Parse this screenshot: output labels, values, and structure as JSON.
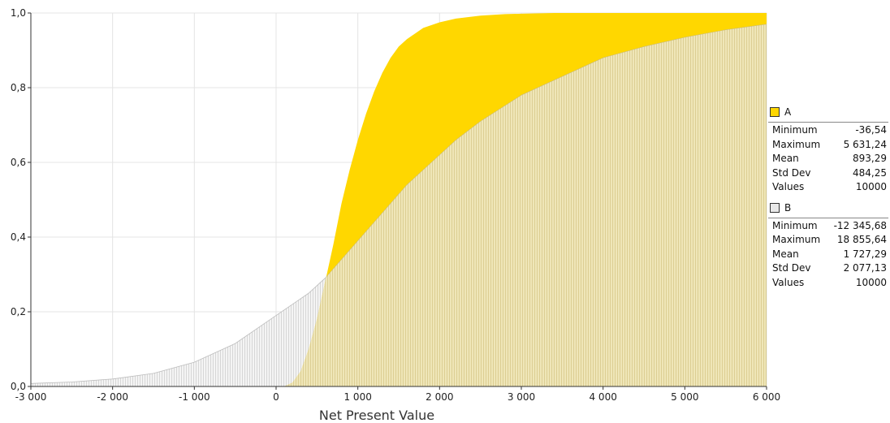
{
  "chart_data": {
    "type": "area",
    "title": "",
    "xlabel": "Net Present Value",
    "ylabel": "",
    "xlim": [
      -3000,
      6000
    ],
    "ylim": [
      0,
      1
    ],
    "x_ticks": [
      "-3 000",
      "-2 000",
      "-1 000",
      "0",
      "1 000",
      "2 000",
      "3 000",
      "4 000",
      "5 000",
      "6 000"
    ],
    "x_tick_values": [
      -3000,
      -2000,
      -1000,
      0,
      1000,
      2000,
      3000,
      4000,
      5000,
      6000
    ],
    "y_ticks": [
      "0,0",
      "0,2",
      "0,4",
      "0,6",
      "0,8",
      "1,0"
    ],
    "y_tick_values": [
      0,
      0.2,
      0.4,
      0.6,
      0.8,
      1.0
    ],
    "grid": true,
    "series": [
      {
        "name": "A",
        "color": "#FFD700",
        "x": [
          -3000,
          100,
          200,
          300,
          400,
          500,
          600,
          700,
          800,
          900,
          1000,
          1100,
          1200,
          1300,
          1400,
          1500,
          1600,
          1800,
          2000,
          2200,
          2500,
          2800,
          3000,
          3400,
          4000,
          6000
        ],
        "values": [
          0,
          0,
          0.01,
          0.04,
          0.1,
          0.18,
          0.28,
          0.38,
          0.49,
          0.58,
          0.66,
          0.73,
          0.79,
          0.84,
          0.88,
          0.91,
          0.93,
          0.96,
          0.975,
          0.985,
          0.993,
          0.997,
          0.998,
          1.0,
          1.0,
          1.0
        ]
      },
      {
        "name": "B",
        "color": "#E8E8E8",
        "x": [
          -3000,
          -2500,
          -2000,
          -1500,
          -1000,
          -500,
          0,
          200,
          400,
          600,
          800,
          1000,
          1200,
          1400,
          1600,
          1800,
          2000,
          2200,
          2500,
          3000,
          3500,
          4000,
          4500,
          5000,
          5500,
          6000
        ],
        "values": [
          0.008,
          0.012,
          0.02,
          0.035,
          0.065,
          0.115,
          0.19,
          0.22,
          0.25,
          0.29,
          0.34,
          0.39,
          0.44,
          0.49,
          0.54,
          0.58,
          0.62,
          0.66,
          0.71,
          0.78,
          0.83,
          0.88,
          0.91,
          0.935,
          0.955,
          0.97
        ]
      }
    ]
  },
  "legend": {
    "placement": "right",
    "entries": [
      {
        "name": "A",
        "color": "#FFD700",
        "stats": [
          {
            "label": "Minimum",
            "value": "-36,54"
          },
          {
            "label": "Maximum",
            "value": "5 631,24"
          },
          {
            "label": "Mean",
            "value": "893,29"
          },
          {
            "label": "Std Dev",
            "value": "484,25"
          },
          {
            "label": "Values",
            "value": "10000"
          }
        ]
      },
      {
        "name": "B",
        "color": "#E8E8E8",
        "stats": [
          {
            "label": "Minimum",
            "value": "-12 345,68"
          },
          {
            "label": "Maximum",
            "value": "18 855,64"
          },
          {
            "label": "Mean",
            "value": "1 727,29"
          },
          {
            "label": "Std Dev",
            "value": "2 077,13"
          },
          {
            "label": "Values",
            "value": "10000"
          }
        ]
      }
    ]
  }
}
